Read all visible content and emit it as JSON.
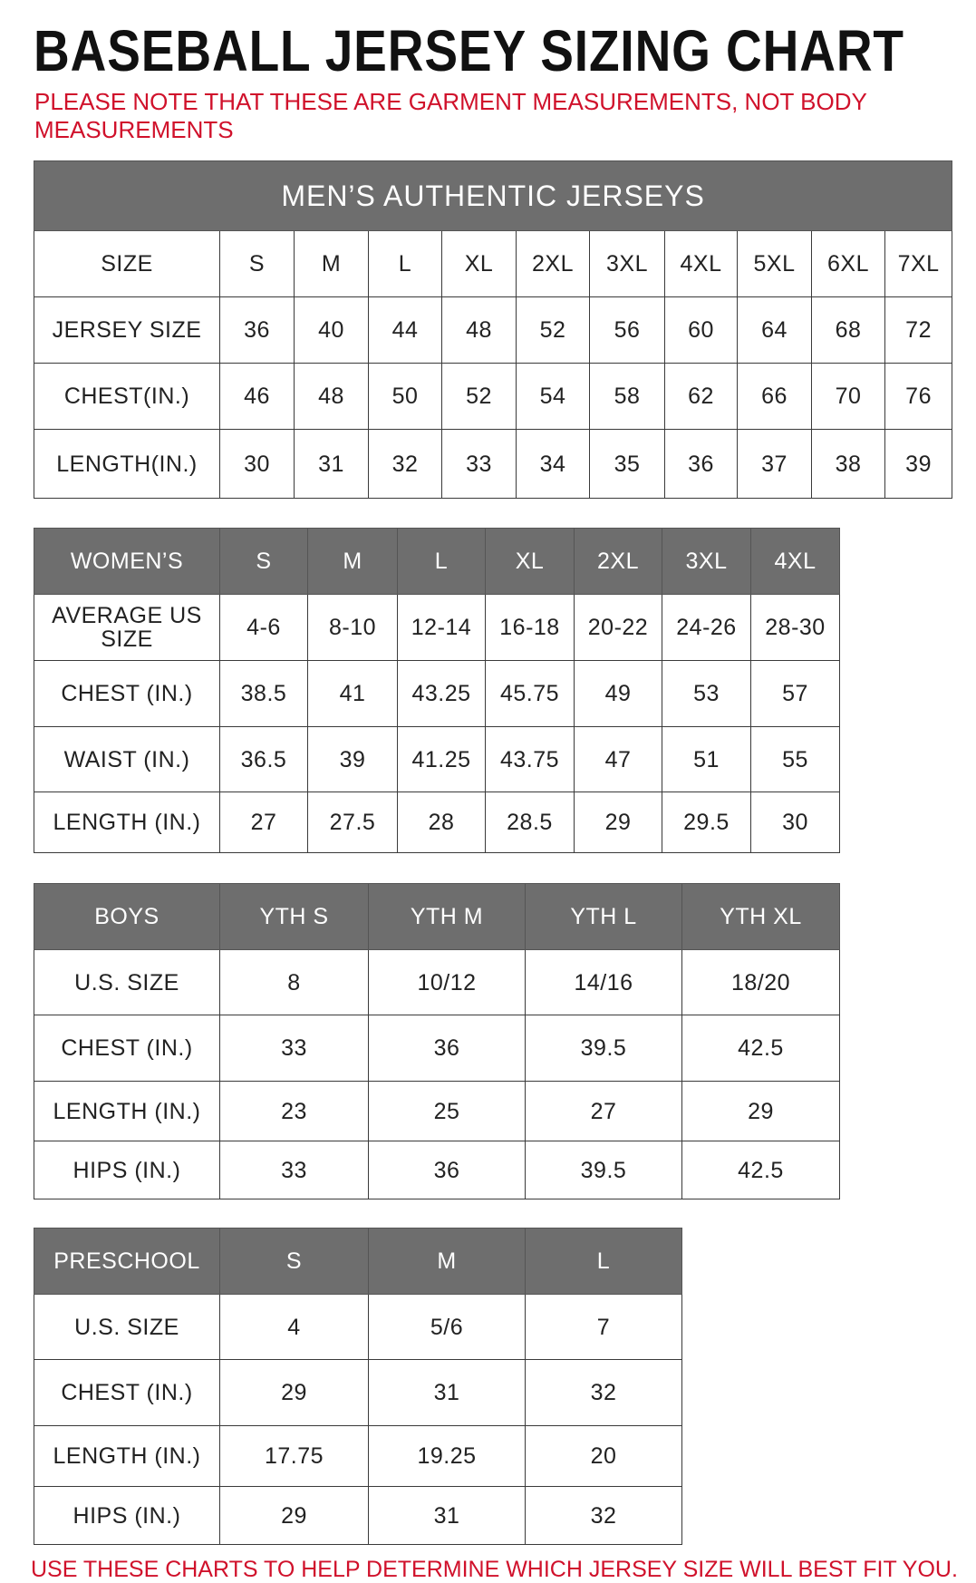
{
  "title": "BASEBALL JERSEY SIZING CHART",
  "note": "PLEASE NOTE THAT THESE ARE GARMENT MEASUREMENTS, NOT BODY MEASUREMENTS",
  "footer": "USE THESE CHARTS TO HELP DETERMINE WHICH JERSEY SIZE WILL BEST FIT YOU.",
  "colors": {
    "header_bg": "#6e6e6e",
    "accent_red": "#d0112b"
  },
  "tables": [
    {
      "banner": "MEN’S AUTHENTIC JERSEYS",
      "header": [
        "SIZE",
        "S",
        "M",
        "L",
        "XL",
        "2XL",
        "3XL",
        "4XL",
        "5XL",
        "6XL",
        "7XL"
      ],
      "rows": [
        [
          "JERSEY SIZE",
          "36",
          "40",
          "44",
          "48",
          "52",
          "56",
          "60",
          "64",
          "68",
          "72"
        ],
        [
          "CHEST(IN.)",
          "46",
          "48",
          "50",
          "52",
          "54",
          "58",
          "62",
          "66",
          "70",
          "76"
        ],
        [
          "LENGTH(IN.)",
          "30",
          "31",
          "32",
          "33",
          "34",
          "35",
          "36",
          "37",
          "38",
          "39"
        ]
      ]
    },
    {
      "header": [
        "WOMEN’S",
        "S",
        "M",
        "L",
        "XL",
        "2XL",
        "3XL",
        "4XL"
      ],
      "rows": [
        [
          "AVERAGE US SIZE",
          "4-6",
          "8-10",
          "12-14",
          "16-18",
          "20-22",
          "24-26",
          "28-30"
        ],
        [
          "CHEST (IN.)",
          "38.5",
          "41",
          "43.25",
          "45.75",
          "49",
          "53",
          "57"
        ],
        [
          "WAIST (IN.)",
          "36.5",
          "39",
          "41.25",
          "43.75",
          "47",
          "51",
          "55"
        ],
        [
          "LENGTH (IN.)",
          "27",
          "27.5",
          "28",
          "28.5",
          "29",
          "29.5",
          "30"
        ]
      ]
    },
    {
      "header": [
        "BOYS",
        "YTH S",
        "YTH M",
        "YTH L",
        "YTH XL"
      ],
      "rows": [
        [
          "U.S. SIZE",
          "8",
          "10/12",
          "14/16",
          "18/20"
        ],
        [
          "CHEST (IN.)",
          "33",
          "36",
          "39.5",
          "42.5"
        ],
        [
          "LENGTH (IN.)",
          "23",
          "25",
          "27",
          "29"
        ],
        [
          "HIPS (IN.)",
          "33",
          "36",
          "39.5",
          "42.5"
        ]
      ]
    },
    {
      "header": [
        "PRESCHOOL",
        "S",
        "M",
        "L"
      ],
      "rows": [
        [
          "U.S. SIZE",
          "4",
          "5/6",
          "7"
        ],
        [
          "CHEST (IN.)",
          "29",
          "31",
          "32"
        ],
        [
          "LENGTH (IN.)",
          "17.75",
          "19.25",
          "20"
        ],
        [
          "HIPS (IN.)",
          "29",
          "31",
          "32"
        ]
      ]
    }
  ]
}
